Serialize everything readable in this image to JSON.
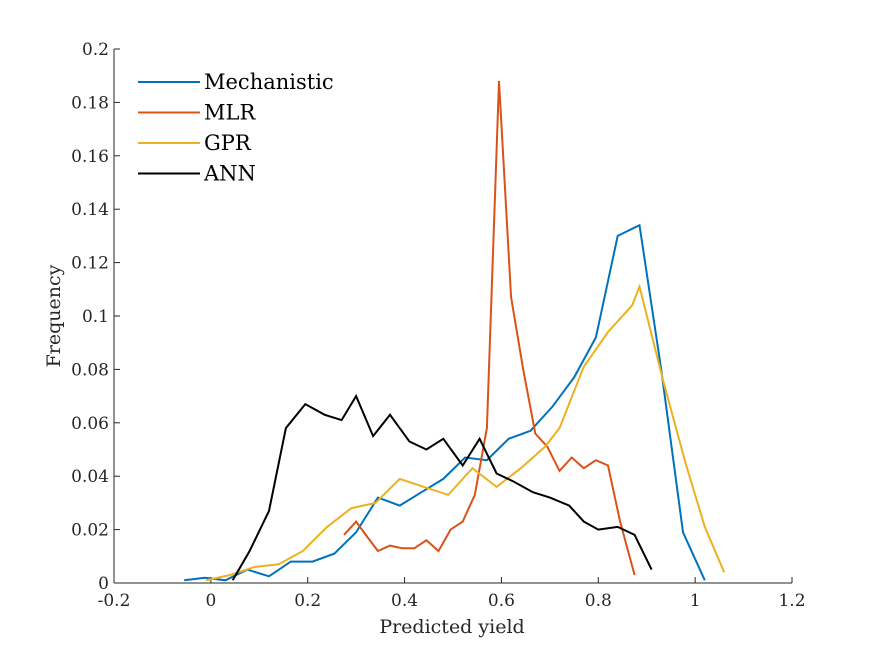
{
  "chart_data": {
    "type": "line",
    "title": "",
    "xlabel": "Predicted yield",
    "ylabel": "Frequency",
    "xlim": [
      -0.2,
      1.2
    ],
    "ylim": [
      0,
      0.2
    ],
    "xticks": [
      "-0.2",
      "0",
      "0.2",
      "0.4",
      "0.6",
      "0.8",
      "1",
      "1.2"
    ],
    "yticks": [
      "0",
      "0.02",
      "0.04",
      "0.06",
      "0.08",
      "0.1",
      "0.12",
      "0.14",
      "0.16",
      "0.18",
      "0.2"
    ],
    "grid": false,
    "legend_position": "top-left",
    "series": [
      {
        "name": "Mechanistic",
        "color": "#0072BD",
        "points": [
          [
            -0.055,
            0.001
          ],
          [
            -0.012,
            0.002
          ],
          [
            0.03,
            0.001
          ],
          [
            0.075,
            0.005
          ],
          [
            0.12,
            0.0025
          ],
          [
            0.165,
            0.008
          ],
          [
            0.21,
            0.008
          ],
          [
            0.255,
            0.011
          ],
          [
            0.3,
            0.019
          ],
          [
            0.345,
            0.032
          ],
          [
            0.39,
            0.029
          ],
          [
            0.435,
            0.034
          ],
          [
            0.48,
            0.039
          ],
          [
            0.525,
            0.047
          ],
          [
            0.57,
            0.046
          ],
          [
            0.615,
            0.054
          ],
          [
            0.66,
            0.057
          ],
          [
            0.705,
            0.066
          ],
          [
            0.75,
            0.077
          ],
          [
            0.795,
            0.092
          ],
          [
            0.84,
            0.13
          ],
          [
            0.885,
            0.134
          ],
          [
            0.93,
            0.08
          ],
          [
            0.975,
            0.019
          ],
          [
            1.02,
            0.001
          ]
        ]
      },
      {
        "name": "MLR",
        "color": "#D95319",
        "points": [
          [
            0.275,
            0.018
          ],
          [
            0.3,
            0.023
          ],
          [
            0.32,
            0.018
          ],
          [
            0.345,
            0.012
          ],
          [
            0.37,
            0.014
          ],
          [
            0.395,
            0.013
          ],
          [
            0.42,
            0.013
          ],
          [
            0.445,
            0.016
          ],
          [
            0.47,
            0.012
          ],
          [
            0.495,
            0.02
          ],
          [
            0.52,
            0.023
          ],
          [
            0.545,
            0.033
          ],
          [
            0.57,
            0.058
          ],
          [
            0.595,
            0.188
          ],
          [
            0.62,
            0.107
          ],
          [
            0.645,
            0.08
          ],
          [
            0.67,
            0.056
          ],
          [
            0.695,
            0.051
          ],
          [
            0.72,
            0.042
          ],
          [
            0.745,
            0.047
          ],
          [
            0.77,
            0.043
          ],
          [
            0.795,
            0.046
          ],
          [
            0.82,
            0.044
          ],
          [
            0.845,
            0.023
          ],
          [
            0.875,
            0.003
          ]
        ]
      },
      {
        "name": "GPR",
        "color": "#EDB120",
        "points": [
          [
            -0.01,
            0.001
          ],
          [
            0.04,
            0.003
          ],
          [
            0.09,
            0.006
          ],
          [
            0.14,
            0.007
          ],
          [
            0.19,
            0.012
          ],
          [
            0.24,
            0.021
          ],
          [
            0.29,
            0.028
          ],
          [
            0.34,
            0.03
          ],
          [
            0.39,
            0.039
          ],
          [
            0.44,
            0.036
          ],
          [
            0.49,
            0.033
          ],
          [
            0.54,
            0.043
          ],
          [
            0.59,
            0.036
          ],
          [
            0.64,
            0.043
          ],
          [
            0.69,
            0.051
          ],
          [
            0.72,
            0.058
          ],
          [
            0.77,
            0.081
          ],
          [
            0.82,
            0.094
          ],
          [
            0.87,
            0.104
          ],
          [
            0.885,
            0.111
          ],
          [
            0.935,
            0.075
          ],
          [
            0.98,
            0.045
          ],
          [
            1.02,
            0.021
          ],
          [
            1.06,
            0.004
          ]
        ]
      },
      {
        "name": "ANN",
        "color": "#000000",
        "points": [
          [
            0.045,
            0.001
          ],
          [
            0.08,
            0.012
          ],
          [
            0.12,
            0.027
          ],
          [
            0.155,
            0.058
          ],
          [
            0.195,
            0.067
          ],
          [
            0.235,
            0.063
          ],
          [
            0.27,
            0.061
          ],
          [
            0.3,
            0.07
          ],
          [
            0.335,
            0.055
          ],
          [
            0.37,
            0.063
          ],
          [
            0.41,
            0.053
          ],
          [
            0.445,
            0.05
          ],
          [
            0.48,
            0.054
          ],
          [
            0.52,
            0.044
          ],
          [
            0.555,
            0.054
          ],
          [
            0.59,
            0.041
          ],
          [
            0.625,
            0.038
          ],
          [
            0.665,
            0.034
          ],
          [
            0.7,
            0.032
          ],
          [
            0.74,
            0.029
          ],
          [
            0.77,
            0.023
          ],
          [
            0.8,
            0.02
          ],
          [
            0.84,
            0.021
          ],
          [
            0.875,
            0.018
          ],
          [
            0.91,
            0.005
          ]
        ]
      }
    ]
  }
}
